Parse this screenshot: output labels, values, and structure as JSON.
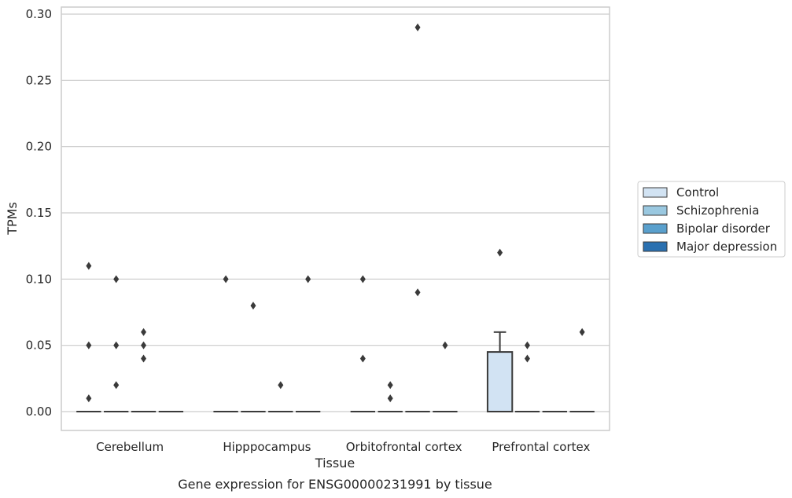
{
  "chart_data": {
    "type": "box",
    "xlabel": "Tissue",
    "ylabel": "TPMs",
    "caption": "Gene expression for ENSG00000231991 by tissue",
    "ylim": [
      -0.015,
      0.302
    ],
    "yticks": [
      "0.00",
      "0.05",
      "0.10",
      "0.15",
      "0.20",
      "0.25",
      "0.30"
    ],
    "ytick_values": [
      0,
      0.05,
      0.1,
      0.15,
      0.2,
      0.25,
      0.3
    ],
    "grid": "horizontal",
    "legend_position": "right",
    "categories": [
      "Cerebellum",
      "Hipppocampus",
      "Orbitofrontal cortex",
      "Prefrontal cortex"
    ],
    "series": [
      {
        "name": "Control",
        "color": "#d2e3f3",
        "boxes": [
          {
            "q1": 0,
            "median": 0,
            "q3": 0,
            "whisker_low": 0,
            "whisker_high": 0,
            "outliers": [
              0.11,
              0.05,
              0.01
            ]
          },
          {
            "q1": 0,
            "median": 0,
            "q3": 0,
            "whisker_low": 0,
            "whisker_high": 0,
            "outliers": [
              0.1
            ]
          },
          {
            "q1": 0,
            "median": 0,
            "q3": 0,
            "whisker_low": 0,
            "whisker_high": 0,
            "outliers": [
              0.1,
              0.04
            ]
          },
          {
            "q1": 0,
            "median": 0,
            "q3": 0.045,
            "whisker_low": 0,
            "whisker_high": 0.06,
            "outliers": [
              0.12
            ]
          }
        ]
      },
      {
        "name": "Schizophrenia",
        "color": "#9ac8e0",
        "boxes": [
          {
            "q1": 0,
            "median": 0,
            "q3": 0,
            "whisker_low": 0,
            "whisker_high": 0,
            "outliers": [
              0.1,
              0.05,
              0.02
            ]
          },
          {
            "q1": 0,
            "median": 0,
            "q3": 0,
            "whisker_low": 0,
            "whisker_high": 0,
            "outliers": [
              0.08
            ]
          },
          {
            "q1": 0,
            "median": 0,
            "q3": 0,
            "whisker_low": 0,
            "whisker_high": 0,
            "outliers": [
              0.02,
              0.01
            ]
          },
          {
            "q1": 0,
            "median": 0,
            "q3": 0,
            "whisker_low": 0,
            "whisker_high": 0,
            "outliers": [
              0.05,
              0.04
            ]
          }
        ]
      },
      {
        "name": "Bipolar disorder",
        "color": "#5aa0cd",
        "boxes": [
          {
            "q1": 0,
            "median": 0,
            "q3": 0,
            "whisker_low": 0,
            "whisker_high": 0,
            "outliers": [
              0.06,
              0.05,
              0.04
            ]
          },
          {
            "q1": 0,
            "median": 0,
            "q3": 0,
            "whisker_low": 0,
            "whisker_high": 0,
            "outliers": [
              0.02
            ]
          },
          {
            "q1": 0,
            "median": 0,
            "q3": 0,
            "whisker_low": 0,
            "whisker_high": 0,
            "outliers": [
              0.29,
              0.09
            ]
          },
          {
            "q1": 0,
            "median": 0,
            "q3": 0,
            "whisker_low": 0,
            "whisker_high": 0,
            "outliers": []
          }
        ]
      },
      {
        "name": "Major depression",
        "color": "#2a70b0",
        "boxes": [
          {
            "q1": 0,
            "median": 0,
            "q3": 0,
            "whisker_low": 0,
            "whisker_high": 0,
            "outliers": []
          },
          {
            "q1": 0,
            "median": 0,
            "q3": 0,
            "whisker_low": 0,
            "whisker_high": 0,
            "outliers": [
              0.1
            ]
          },
          {
            "q1": 0,
            "median": 0,
            "q3": 0,
            "whisker_low": 0,
            "whisker_high": 0,
            "outliers": [
              0.05
            ]
          },
          {
            "q1": 0,
            "median": 0,
            "q3": 0,
            "whisker_low": 0,
            "whisker_high": 0,
            "outliers": [
              0.06
            ]
          }
        ]
      }
    ]
  }
}
